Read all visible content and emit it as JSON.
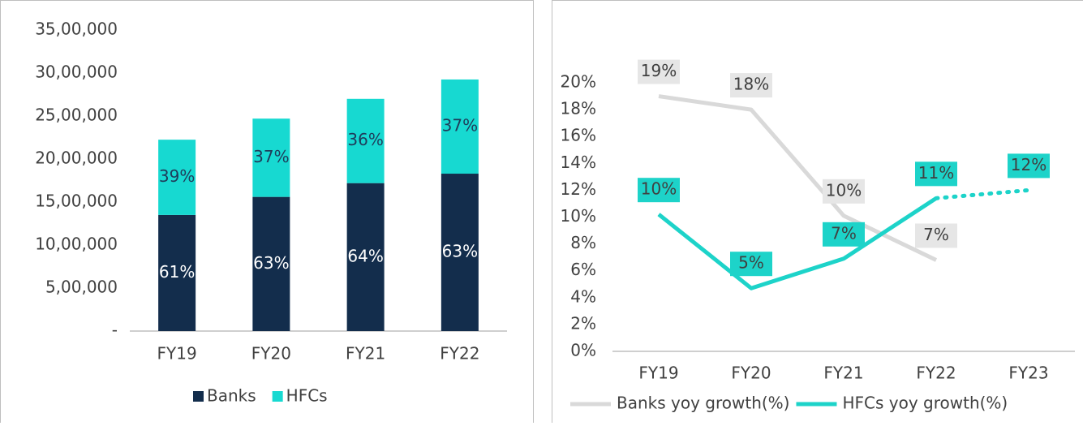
{
  "chart_data": [
    {
      "type": "bar",
      "stacked": true,
      "categories": [
        "FY19",
        "FY20",
        "FY21",
        "FY22"
      ],
      "series": [
        {
          "name": "Banks",
          "color": "#132d4c",
          "values": [
            1350000,
            1560000,
            1720000,
            1830000
          ],
          "share_labels": [
            "61%",
            "63%",
            "64%",
            "63%"
          ],
          "label_color": "#ffffff"
        },
        {
          "name": "HFCs",
          "color": "#17d9d1",
          "values": [
            875000,
            910000,
            980000,
            1095000
          ],
          "share_labels": [
            "39%",
            "37%",
            "36%",
            "37%"
          ],
          "label_color": "#1f3c5a"
        }
      ],
      "ylim": [
        0,
        3500000
      ],
      "yticks": [
        {
          "value": 0,
          "label": "-"
        },
        {
          "value": 500000,
          "label": "5,00,000"
        },
        {
          "value": 1000000,
          "label": "10,00,000"
        },
        {
          "value": 1500000,
          "label": "15,00,000"
        },
        {
          "value": 2000000,
          "label": "20,00,000"
        },
        {
          "value": 2500000,
          "label": "25,00,000"
        },
        {
          "value": 3000000,
          "label": "30,00,000"
        },
        {
          "value": 3500000,
          "label": "35,00,000"
        }
      ],
      "grid": false,
      "legend": "bottom"
    },
    {
      "type": "line",
      "categories": [
        "FY19",
        "FY20",
        "FY21",
        "FY22",
        "FY23"
      ],
      "series": [
        {
          "name": "Banks yoy growth(%)",
          "color": "#d9d9d9",
          "label_fill": "#e6e6e6",
          "values": [
            19,
            18,
            10.1,
            6.8,
            null
          ],
          "value_labels": [
            "19%",
            "18%",
            "10%",
            "7%",
            null
          ]
        },
        {
          "name": "HFCs yoy growth(%)",
          "color": "#1dd3c9",
          "label_fill": "#1dd3c9",
          "values": [
            10.2,
            4.7,
            6.9,
            11.4,
            12
          ],
          "value_labels": [
            "10%",
            "5%",
            "7%",
            "11%",
            "12%"
          ],
          "dotted_categories": [
            "FY23"
          ]
        }
      ],
      "ylim": [
        0,
        20
      ],
      "yticks": [
        {
          "value": 0,
          "label": "0%"
        },
        {
          "value": 2,
          "label": "2%"
        },
        {
          "value": 4,
          "label": "4%"
        },
        {
          "value": 6,
          "label": "6%"
        },
        {
          "value": 8,
          "label": "8%"
        },
        {
          "value": 10,
          "label": "10%"
        },
        {
          "value": 12,
          "label": "12%"
        },
        {
          "value": 14,
          "label": "14%"
        },
        {
          "value": 16,
          "label": "16%"
        },
        {
          "value": 18,
          "label": "18%"
        },
        {
          "value": 20,
          "label": "20%"
        }
      ],
      "grid": false,
      "legend": "bottom"
    }
  ]
}
